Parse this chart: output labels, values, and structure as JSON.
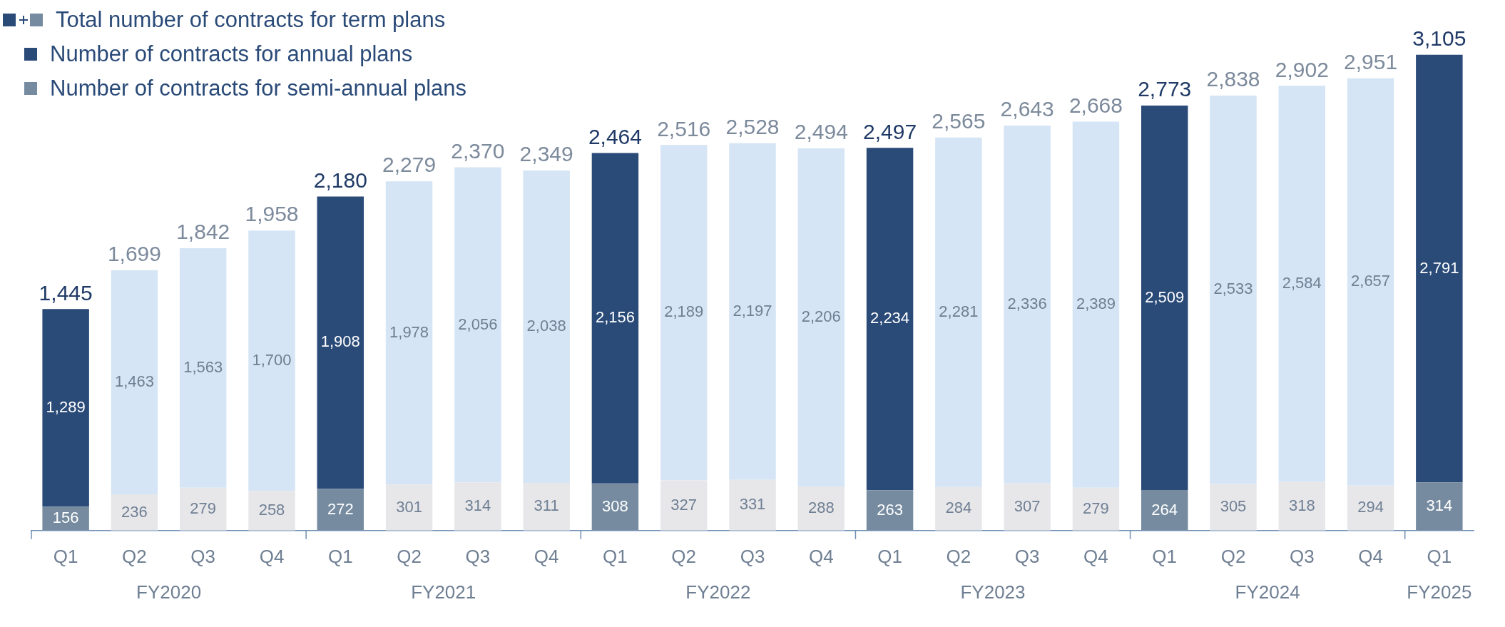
{
  "chart_data": {
    "type": "bar",
    "stacked": true,
    "data_labels": true,
    "legend": "top left",
    "grid": false,
    "tick_labels": "x",
    "legend_title": "Total number of contracts for term plans",
    "categories": [
      "Q1",
      "Q2",
      "Q3",
      "Q4",
      "Q1",
      "Q2",
      "Q3",
      "Q4",
      "Q1",
      "Q2",
      "Q3",
      "Q4",
      "Q1",
      "Q2",
      "Q3",
      "Q4",
      "Q1",
      "Q2",
      "Q3",
      "Q4",
      "Q1"
    ],
    "series": [
      {
        "name": "Number of contracts for semi-annual plans",
        "color": "#768ba0",
        "colors": [
          "#768ba0",
          "#e7e7ea",
          "#e7e7ea",
          "#e7e7ea",
          "#768ba0",
          "#e7e7ea",
          "#e7e7ea",
          "#e7e7ea",
          "#768ba0",
          "#e7e7ea",
          "#e7e7ea",
          "#e7e7ea",
          "#768ba0",
          "#e7e7ea",
          "#e7e7ea",
          "#e7e7ea",
          "#768ba0",
          "#e7e7ea",
          "#e7e7ea",
          "#e7e7ea",
          "#768ba0"
        ],
        "values": [
          156,
          236,
          279,
          258,
          272,
          301,
          314,
          311,
          308,
          327,
          331,
          288,
          263,
          284,
          307,
          279,
          264,
          305,
          318,
          294,
          314
        ]
      },
      {
        "name": "Number of contracts for annual plans",
        "color": "#2a4a78",
        "colors": [
          "#2a4a78",
          "#d5e5f5",
          "#d5e5f5",
          "#d5e5f5",
          "#2a4a78",
          "#d5e5f5",
          "#d5e5f5",
          "#d5e5f5",
          "#2a4a78",
          "#d5e5f5",
          "#d5e5f5",
          "#d5e5f5",
          "#2a4a78",
          "#d5e5f5",
          "#d5e5f5",
          "#d5e5f5",
          "#2a4a78",
          "#d5e5f5",
          "#d5e5f5",
          "#d5e5f5",
          "#2a4a78"
        ],
        "values": [
          1289,
          1463,
          1563,
          1700,
          1908,
          1978,
          2056,
          2038,
          2156,
          2189,
          2197,
          2206,
          2234,
          2281,
          2336,
          2389,
          2509,
          2533,
          2584,
          2657,
          2791
        ],
        "value_labels": [
          "1,289",
          "1,463",
          "1,563",
          "1,700",
          "1,908",
          "1,978",
          "2,056",
          "2,038",
          "2,156",
          "2,189",
          "2,197",
          "2,206",
          "2,234",
          "2,281",
          "2,336",
          "2,389",
          "2,509",
          "2,533",
          "2,584",
          "2,657",
          "2,791"
        ]
      }
    ],
    "totals": [
      "1,445",
      "1,699",
      "1,842",
      "1,958",
      "2,180",
      "2,279",
      "2,370",
      "2,349",
      "2,464",
      "2,516",
      "2,528",
      "2,494",
      "2,497",
      "2,565",
      "2,643",
      "2,668",
      "2,773",
      "2,838",
      "2,902",
      "2,951",
      "3,105"
    ],
    "annotations": [
      "FY2020",
      "FY2021",
      "FY2022",
      "FY2023",
      "FY2024",
      "FY2025"
    ]
  }
}
